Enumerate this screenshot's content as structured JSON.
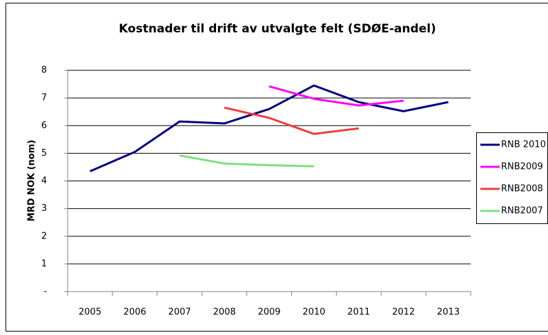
{
  "chart_data": {
    "type": "line",
    "title": "Kostnader til drift av utvalgte felt (SDØE-andel)",
    "y_label": "MRD NOK (nom)",
    "categories": [
      "2005",
      "2006",
      "2007",
      "2008",
      "2009",
      "2010",
      "2011",
      "2012",
      "2013"
    ],
    "series": [
      {
        "name": "RNB 2010",
        "color": "#000080",
        "values": [
          4.35,
          5.05,
          6.15,
          6.08,
          6.6,
          7.45,
          6.85,
          6.52,
          6.85
        ]
      },
      {
        "name": "RNB2009",
        "color": "#ff00ff",
        "values": [
          null,
          null,
          null,
          null,
          7.42,
          6.97,
          6.73,
          6.9,
          null
        ]
      },
      {
        "name": "RNB2008",
        "color": "#f03c3c",
        "values": [
          null,
          null,
          null,
          6.65,
          6.28,
          5.7,
          5.9,
          null,
          null
        ]
      },
      {
        "name": "RNB2007",
        "color": "#7ee07e",
        "values": [
          null,
          null,
          4.92,
          4.63,
          4.57,
          4.53,
          null,
          null,
          null
        ]
      }
    ],
    "ylim": [
      0,
      8
    ],
    "yticks": [
      {
        "value": 0,
        "label": "-"
      },
      1,
      2,
      3,
      4,
      5,
      6,
      7,
      8
    ],
    "grid": true,
    "legend": "right"
  }
}
